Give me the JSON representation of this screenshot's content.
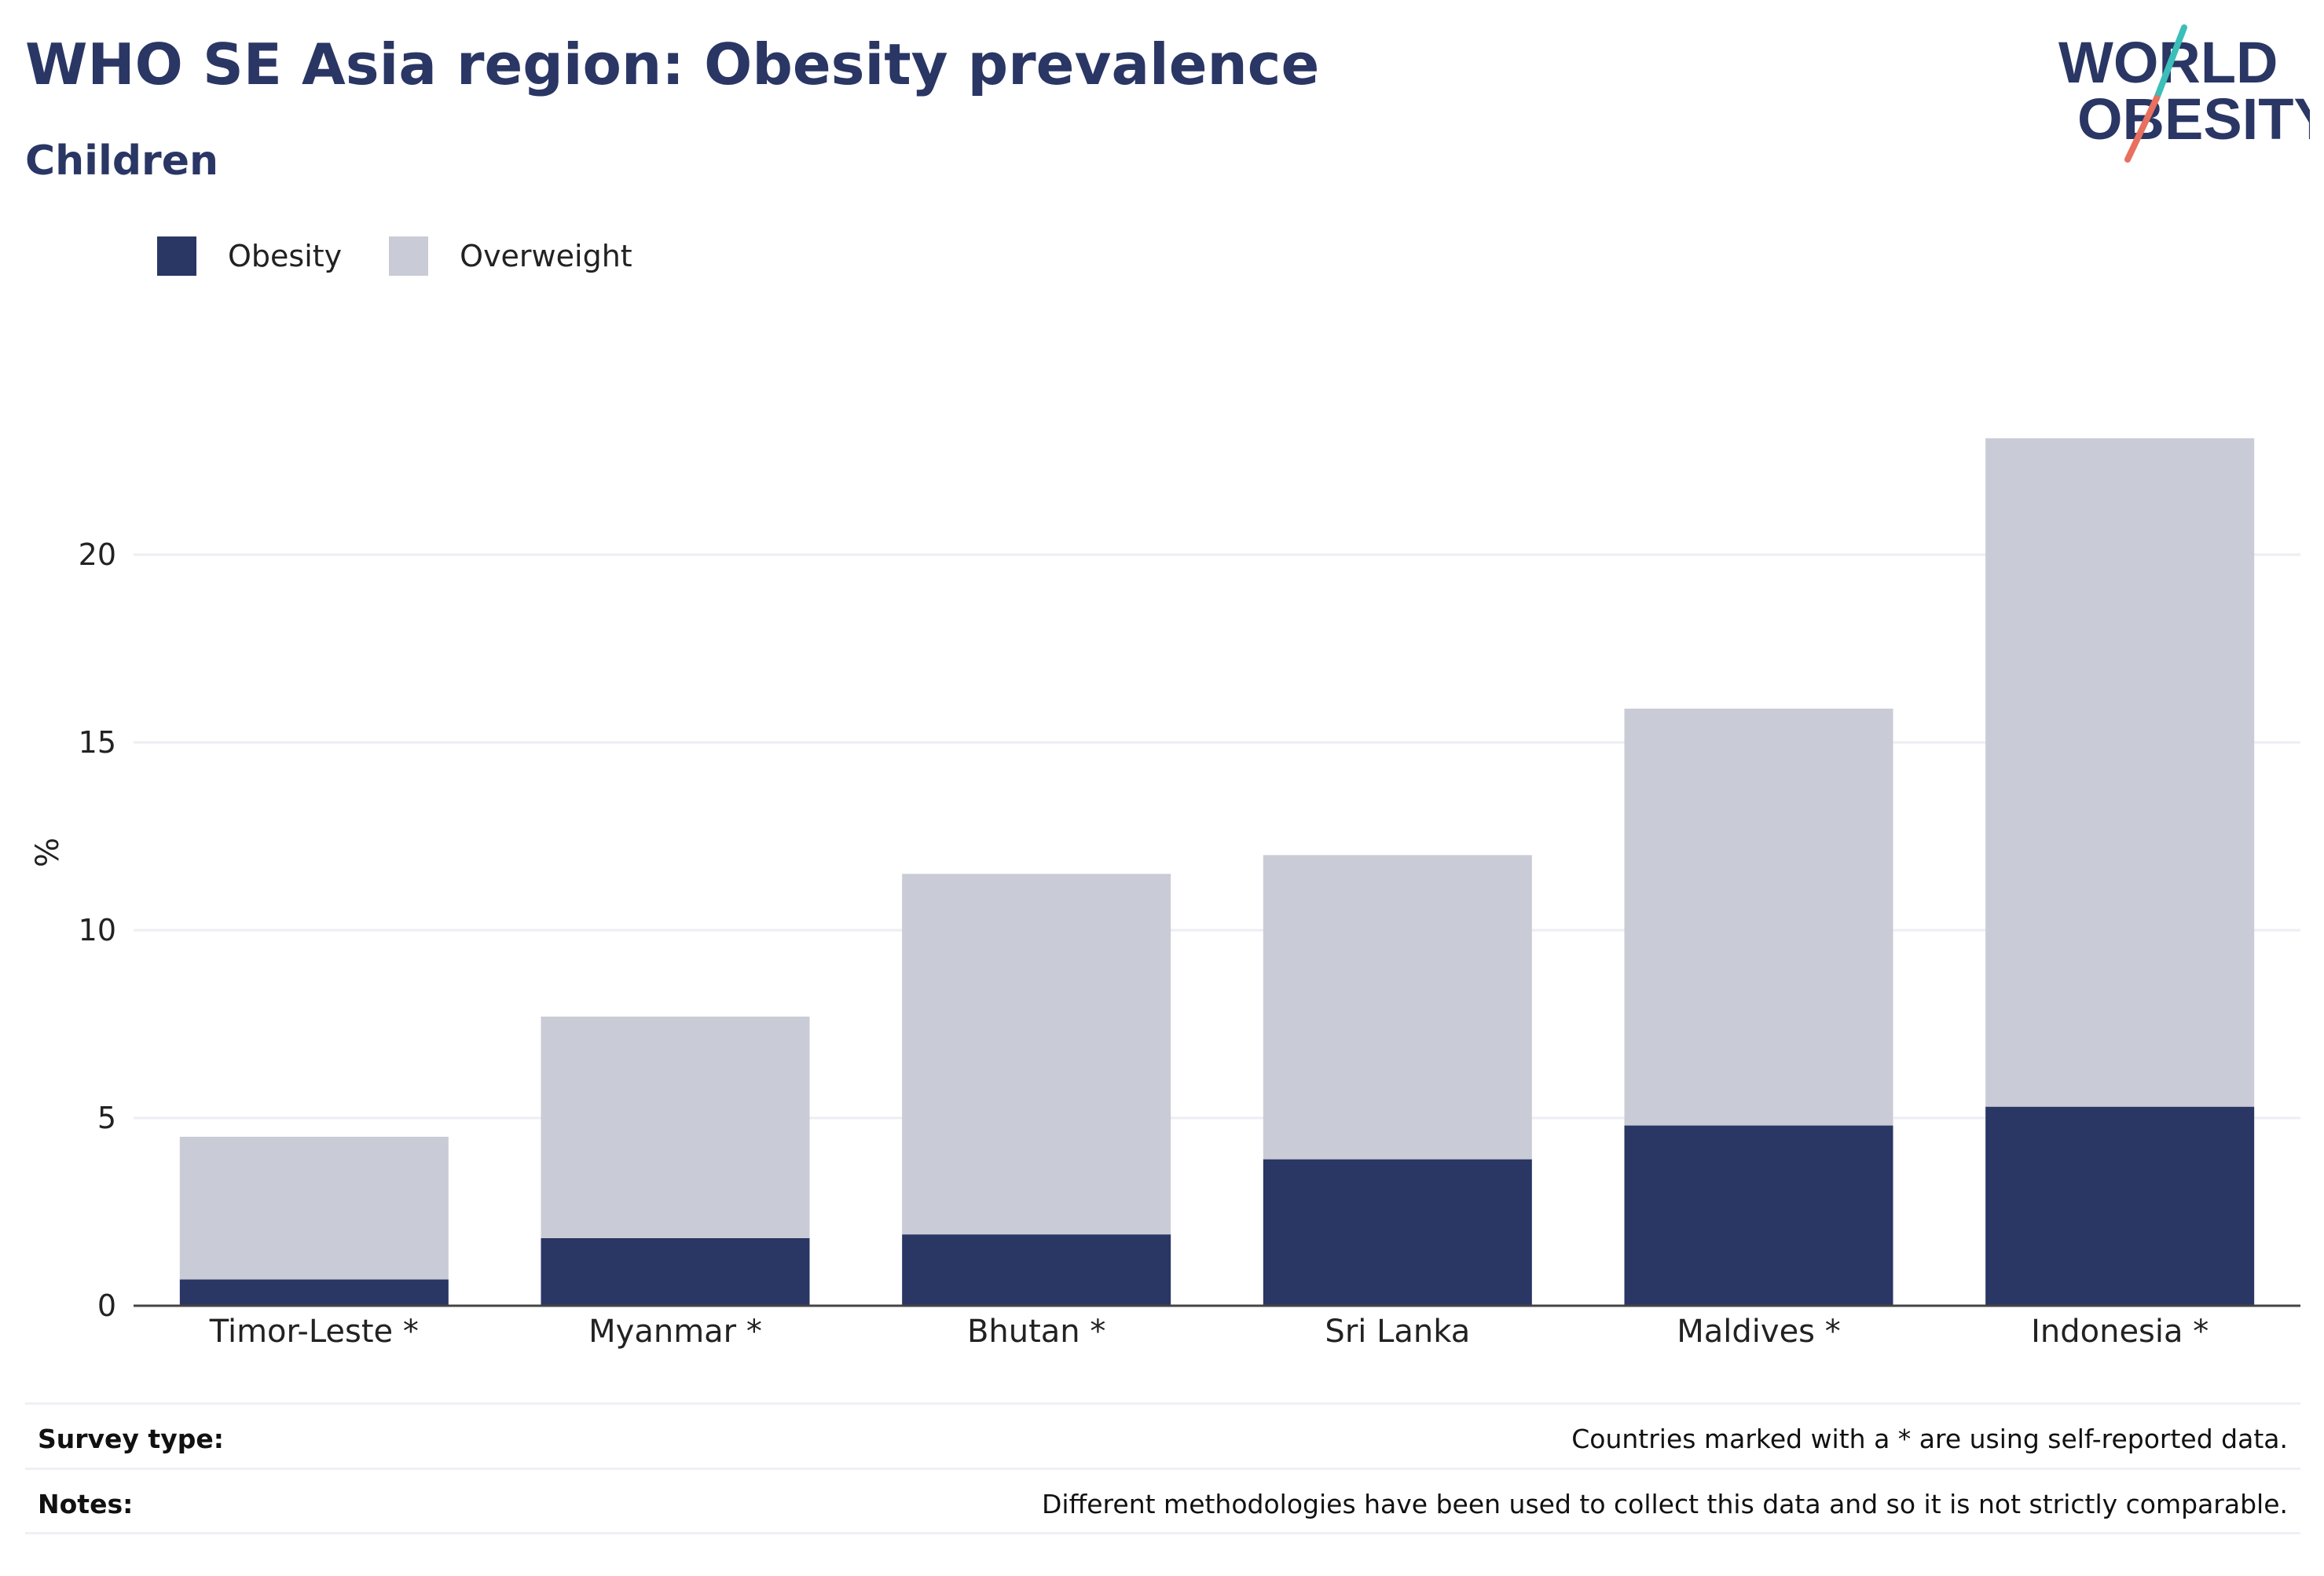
{
  "header": {
    "title": "WHO SE Asia region: Obesity prevalence",
    "subtitle": "Children"
  },
  "logo": {
    "line1": "WORLD",
    "line2": "OBESITY",
    "accent_teal": "#3bbfb8",
    "accent_coral": "#e8705e"
  },
  "legend": {
    "items": [
      {
        "label": "Obesity",
        "color": "#2a3664"
      },
      {
        "label": "Overweight",
        "color": "#c9cbd6"
      }
    ]
  },
  "chart_data": {
    "type": "bar",
    "stacked": true,
    "categories": [
      "Timor-Leste *",
      "Myanmar *",
      "Bhutan *",
      "Sri Lanka",
      "Maldives *",
      "Indonesia *"
    ],
    "series": [
      {
        "name": "Obesity",
        "color": "#2a3664",
        "values": [
          0.7,
          1.8,
          1.9,
          3.9,
          4.8,
          5.3
        ]
      },
      {
        "name": "Overweight",
        "color": "#c9cbd6",
        "values": [
          3.8,
          5.9,
          9.6,
          8.1,
          11.1,
          17.8
        ]
      }
    ],
    "ylabel": "%",
    "ylim": [
      0,
      25
    ],
    "yticks": [
      0,
      5,
      10,
      15,
      20
    ],
    "grid": true,
    "legend_position": "top-left"
  },
  "footer": {
    "survey_type_label": "Survey type:",
    "survey_type_value": "Countries marked with a * are using self-reported data.",
    "notes_label": "Notes:",
    "notes_value": "Different methodologies have been used to collect this data and so it is not strictly comparable."
  }
}
